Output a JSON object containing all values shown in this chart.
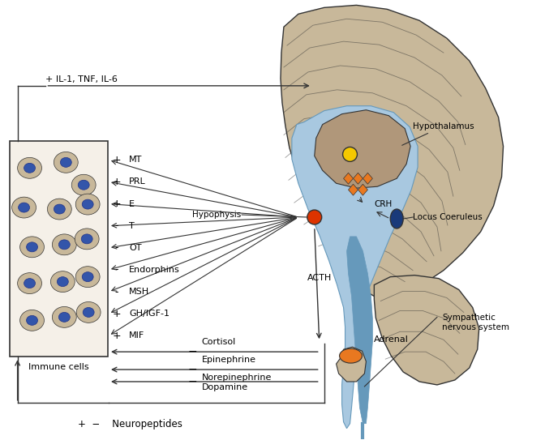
{
  "bg_color": "#ffffff",
  "brain_color": "#c8b89a",
  "blue_structure_color": "#a8c8e0",
  "blue_dark_color": "#6699bb",
  "thalamus_color": "#b0977a",
  "yellow_dot_color": "#f5c800",
  "red_dot_color": "#dd3300",
  "blue_dot_color": "#1a3a7a",
  "orange_color": "#e87820",
  "adrenal_orange_color": "#e87820",
  "adrenal_beige_color": "#c8b89a",
  "line_color": "#333333",
  "cell_nucleus_color": "#3355aa",
  "cell_body_color": "#c8b89a",
  "box_bg_color": "#f5f0e8",
  "hypothalamus_label": "Hypothalamus",
  "hypophysis_label": "Hypophysis",
  "crh_label": "CRH",
  "locus_label": "Locus Coeruleus",
  "acth_label": "ACTH",
  "adrenal_label": "Adrenal",
  "sympathetic_label": "Sympathetic\nnervous system",
  "immune_label": "Immune cells",
  "neuropeptides_label": "Neuropeptides",
  "il_label": "IL-1, TNF, IL-6",
  "cortisol_label": "Cortisol",
  "epinephrine_label": "Epinephrine",
  "norepinephrine_label": "Norepinephrine\nDopamine",
  "hormones": [
    {
      "sign": "+",
      "name": "MT"
    },
    {
      "sign": "+",
      "name": "PRL"
    },
    {
      "sign": "+",
      "name": "E"
    },
    {
      "sign": "-",
      "name": "T"
    },
    {
      "sign": "-",
      "name": "OT"
    },
    {
      "sign": "-",
      "name": "Endorphins"
    },
    {
      "sign": "-",
      "name": "MSH"
    },
    {
      "sign": "+",
      "name": "GH/IGF-1"
    },
    {
      "sign": "+",
      "name": "MIF"
    }
  ]
}
